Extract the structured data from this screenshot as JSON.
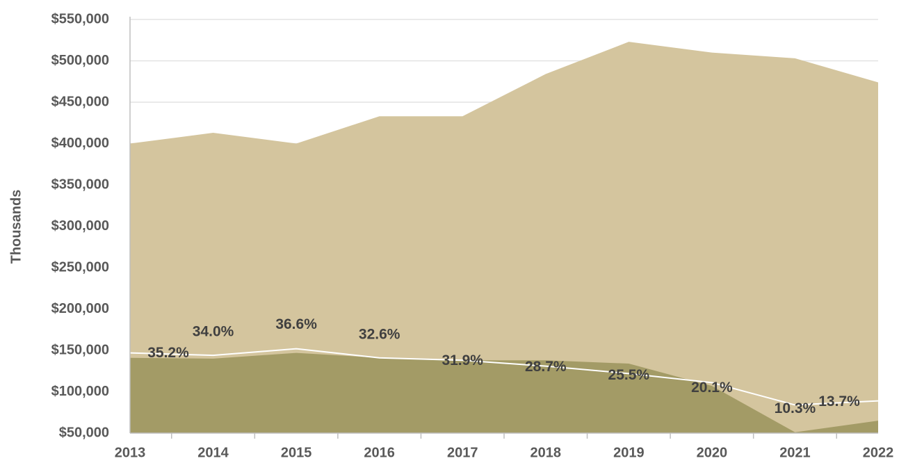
{
  "chart_data": {
    "type": "area",
    "y_label": "Thousands",
    "categories": [
      "2013",
      "2014",
      "2015",
      "2016",
      "2017",
      "2018",
      "2019",
      "2020",
      "2021",
      "2022"
    ],
    "series": [
      {
        "type": "area",
        "color": "#d4c59e",
        "values": [
          400000,
          413000,
          400000,
          433000,
          433000,
          484000,
          523000,
          510000,
          503000,
          474000
        ]
      },
      {
        "type": "area",
        "color": "#a39b66",
        "values": [
          141000,
          140000,
          147000,
          141000,
          138000,
          138000,
          134000,
          107000,
          51000,
          65000
        ]
      },
      {
        "type": "line",
        "color": "#ffffff",
        "values": [
          147000,
          144000,
          152000,
          141000,
          138000,
          131000,
          122000,
          111000,
          84000,
          89000
        ]
      }
    ],
    "annotations": [
      "35.2%",
      "34.0%",
      "36.6%",
      "32.6%",
      "31.9%",
      "28.7%",
      "25.5%",
      "20.1%",
      "10.3%",
      "13.7%"
    ],
    "ylim": [
      50000,
      550000
    ],
    "yticks": [
      {
        "value": 50000,
        "label": "$50,000"
      },
      {
        "value": 100000,
        "label": "$100,000"
      },
      {
        "value": 150000,
        "label": "$150,000"
      },
      {
        "value": 200000,
        "label": "$200,000"
      },
      {
        "value": 250000,
        "label": "$250,000"
      },
      {
        "value": 300000,
        "label": "$300,000"
      },
      {
        "value": 350000,
        "label": "$350,000"
      },
      {
        "value": 400000,
        "label": "$400,000"
      },
      {
        "value": 450000,
        "label": "$450,000"
      },
      {
        "value": 500000,
        "label": "$500,000"
      },
      {
        "value": 550000,
        "label": "$550,000"
      }
    ],
    "grid": true
  }
}
